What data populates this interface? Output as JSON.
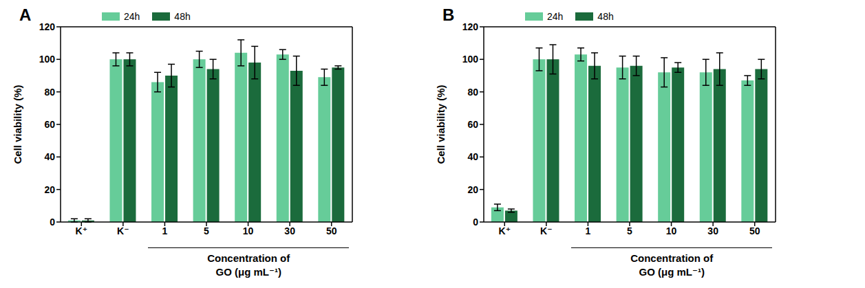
{
  "chart_data": [
    {
      "type": "bar",
      "title": "A",
      "y_label": "Cell viability (%)",
      "x_label": "Concentration of\nGO (μg mL⁻¹)",
      "categories": [
        "K⁺",
        "K⁻",
        "1",
        "5",
        "10",
        "30",
        "50"
      ],
      "ylim": [
        0,
        120
      ],
      "yticks": [
        0,
        20,
        40,
        60,
        80,
        100,
        120
      ],
      "grid": false,
      "legend": "top-left",
      "series": [
        {
          "name": "24h",
          "color": "#66cc99",
          "values": [
            1,
            100,
            86,
            100,
            104,
            103,
            89
          ],
          "errors": [
            1,
            4,
            6,
            5,
            8,
            3,
            5
          ]
        },
        {
          "name": "48h",
          "color": "#1b6b3c",
          "values": [
            1,
            100,
            90,
            94,
            98,
            93,
            95
          ],
          "errors": [
            1,
            4,
            7,
            6,
            10,
            9,
            1
          ]
        }
      ]
    },
    {
      "type": "bar",
      "title": "B",
      "y_label": "Cell viability (%)",
      "x_label": "Concentration of\nGO (μg mL⁻¹)",
      "categories": [
        "K⁺",
        "K⁻",
        "1",
        "5",
        "10",
        "30",
        "50"
      ],
      "ylim": [
        0,
        120
      ],
      "yticks": [
        0,
        20,
        40,
        60,
        80,
        100,
        120
      ],
      "grid": false,
      "legend": "top-left",
      "series": [
        {
          "name": "24h",
          "color": "#66cc99",
          "values": [
            9,
            100,
            103,
            95,
            92,
            92,
            87
          ],
          "errors": [
            2,
            7,
            4,
            7,
            9,
            8,
            3
          ]
        },
        {
          "name": "48h",
          "color": "#1b6b3c",
          "values": [
            7,
            100,
            96,
            96,
            95,
            94,
            94
          ],
          "errors": [
            1,
            9,
            8,
            6,
            3,
            10,
            6
          ]
        }
      ]
    }
  ]
}
